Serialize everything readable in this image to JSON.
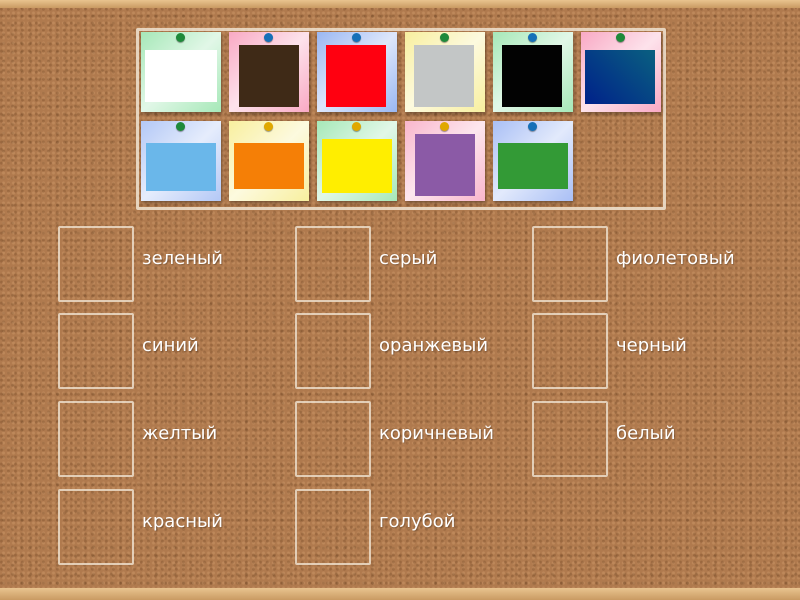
{
  "cards": [
    {
      "paper": "#a6e8b8",
      "pin": "#1e8a3a",
      "color": "#ffffff"
    },
    {
      "paper": "#f9a9c4",
      "pin": "#1670b8",
      "color": "#3f2a17"
    },
    {
      "paper": "#9ab7f2",
      "pin": "#1670b8",
      "color": "#ff0010"
    },
    {
      "paper": "#f8ef9e",
      "pin": "#1e8a3a",
      "color": "#c3c6c6"
    },
    {
      "paper": "#a6e8b8",
      "pin": "#1670b8",
      "color": "#020202"
    },
    {
      "paper": "#f9a9c4",
      "pin": "#1e8a3a",
      "color": "#0a3a86"
    },
    {
      "paper": "#b3c8f6",
      "pin": "#1e8a3a",
      "color": "#6ab7ea"
    },
    {
      "paper": "#f8ef9e",
      "pin": "#e0a800",
      "color": "#f57f06"
    },
    {
      "paper": "#a6e8b8",
      "pin": "#e0a800",
      "color": "#ffee00"
    },
    {
      "paper": "#f9b6cc",
      "pin": "#e0a800",
      "color": "#8b5aa6"
    },
    {
      "paper": "#a9bff5",
      "pin": "#1670b8",
      "color": "#339a36"
    }
  ],
  "targets": [
    {
      "label": "зеленый"
    },
    {
      "label": "синий"
    },
    {
      "label": "желтый"
    },
    {
      "label": "красный"
    },
    {
      "label": "серый"
    },
    {
      "label": "оранжевый"
    },
    {
      "label": "коричневый"
    },
    {
      "label": "голубой"
    },
    {
      "label": "фиолетовый"
    },
    {
      "label": "черный"
    },
    {
      "label": "белый"
    }
  ]
}
